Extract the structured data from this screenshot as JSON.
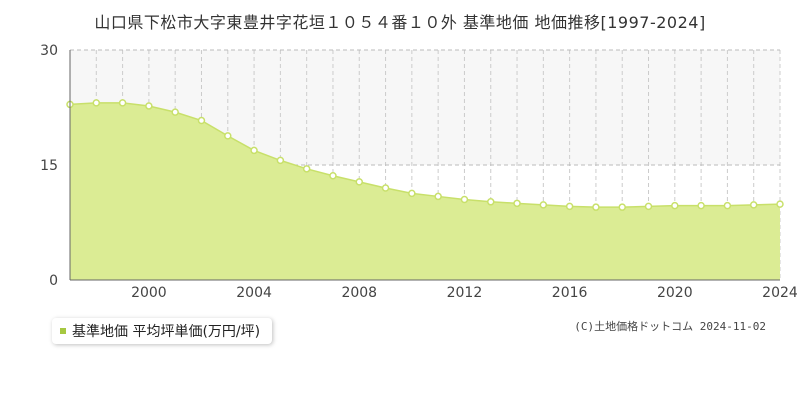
{
  "title": "山口県下松市大字東豊井字花垣１０５４番１０外 基準地価 地価推移[1997-2024]",
  "legend": {
    "label": "基準地価 平均坪単価(万円/坪)"
  },
  "copyright": "(C)土地価格ドットコム 2024-11-02",
  "colors": {
    "area_fill": "#dbec94",
    "line": "#c8e06a",
    "point_fill": "#ffffff",
    "band_fill": "#f7f7f7",
    "legend_swatch": "#a6c841"
  },
  "chart_data": {
    "type": "area",
    "x": [
      1997,
      1998,
      1999,
      2000,
      2001,
      2002,
      2003,
      2004,
      2005,
      2006,
      2007,
      2008,
      2009,
      2010,
      2011,
      2012,
      2013,
      2014,
      2015,
      2016,
      2017,
      2018,
      2019,
      2020,
      2021,
      2022,
      2023,
      2024
    ],
    "series": [
      {
        "name": "基準地価 平均坪単価(万円/坪)",
        "values": [
          22.9,
          23.1,
          23.1,
          22.7,
          21.9,
          20.8,
          18.8,
          16.9,
          15.6,
          14.5,
          13.6,
          12.8,
          12.0,
          11.3,
          10.9,
          10.5,
          10.2,
          10.0,
          9.8,
          9.6,
          9.5,
          9.5,
          9.6,
          9.7,
          9.7,
          9.7,
          9.8,
          9.9
        ]
      }
    ],
    "xlim": [
      1997,
      2024
    ],
    "ylim": [
      0,
      30
    ],
    "yticks": [
      0,
      15,
      30
    ],
    "xticks": [
      2000,
      2004,
      2008,
      2012,
      2016,
      2020,
      2024
    ],
    "grid": true
  }
}
